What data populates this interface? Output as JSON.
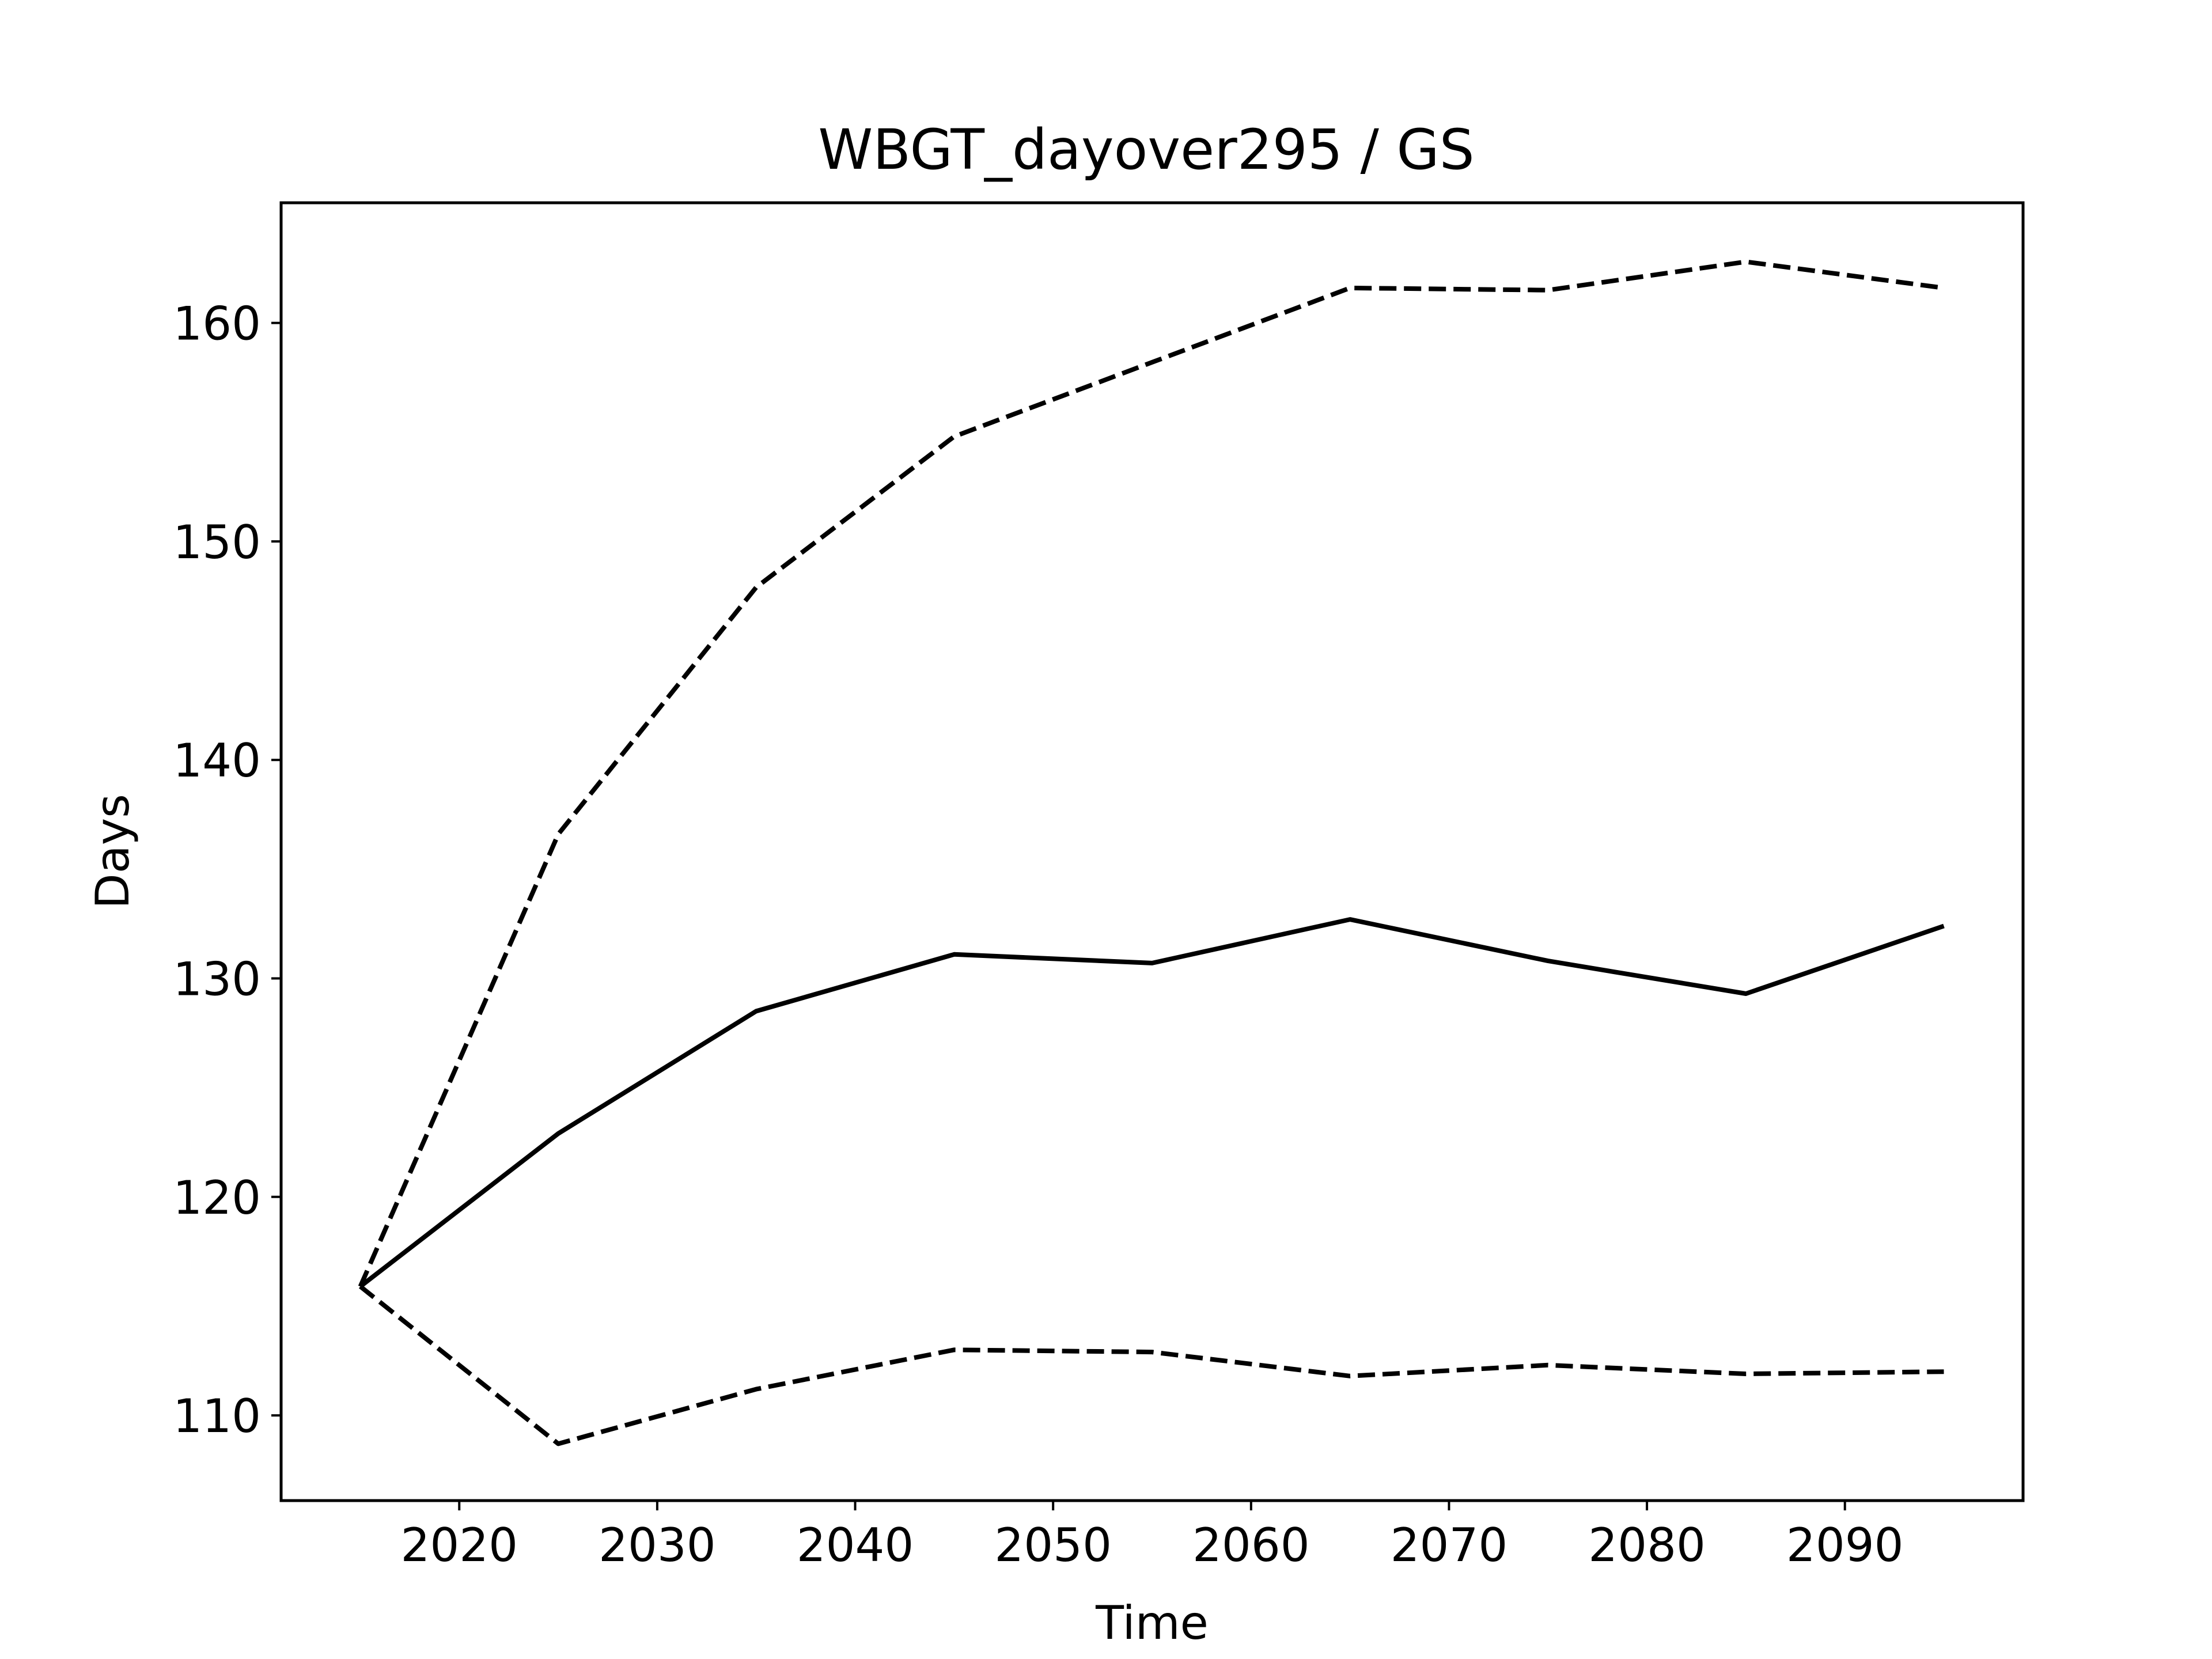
{
  "chart_data": {
    "type": "line",
    "title": "WBGT_dayover295 / GS",
    "xlabel": "Time",
    "ylabel": "Days",
    "x": [
      2015,
      2025,
      2035,
      2045,
      2055,
      2065,
      2075,
      2085,
      2095
    ],
    "xlim": [
      2011,
      2099
    ],
    "ylim": [
      106.1,
      165.5
    ],
    "xticks": [
      2020,
      2030,
      2040,
      2050,
      2060,
      2070,
      2080,
      2090
    ],
    "yticks": [
      110,
      120,
      130,
      140,
      150,
      160
    ],
    "grid": false,
    "legend": "none",
    "series": [
      {
        "style": "solid",
        "color": "#000000",
        "values": [
          115.9,
          122.9,
          128.5,
          131.1,
          130.7,
          132.7,
          130.8,
          129.3,
          132.4
        ]
      },
      {
        "style": "dashed",
        "color": "#000000",
        "values": [
          115.9,
          136.6,
          147.9,
          154.8,
          158.2,
          161.6,
          161.5,
          162.8,
          161.6
        ]
      },
      {
        "style": "dashed",
        "color": "#000000",
        "values": [
          115.9,
          108.7,
          111.2,
          113.0,
          112.9,
          111.8,
          112.3,
          111.9,
          112.0
        ]
      }
    ]
  }
}
